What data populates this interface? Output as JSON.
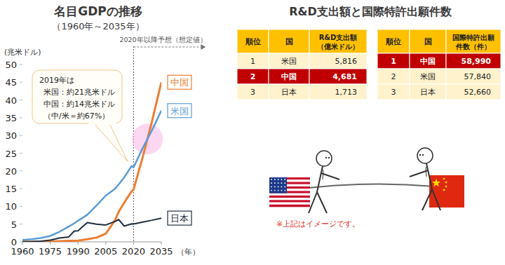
{
  "chart_data": {
    "type": "line",
    "title": "名目GDPの推移",
    "subtitle": "（1960年～2035年）",
    "y_label": "(兆米ドル)",
    "x_label": "（年）",
    "x": [
      1960,
      1965,
      1970,
      1975,
      1980,
      1985,
      1988,
      1990,
      1995,
      2000,
      2005,
      2010,
      2012,
      2015,
      2019,
      2020,
      2025,
      2030,
      2035
    ],
    "series": [
      {
        "name": "中国",
        "color": "#ed7d31",
        "values": [
          0.06,
          0.07,
          0.09,
          0.16,
          0.19,
          0.31,
          0.31,
          0.36,
          0.73,
          1.21,
          2.29,
          6.09,
          8.5,
          11.06,
          14.3,
          14.7,
          24,
          34,
          45
        ]
      },
      {
        "name": "米国",
        "color": "#5b9bd5",
        "values": [
          0.54,
          0.74,
          1.07,
          1.68,
          2.86,
          4.34,
          5.24,
          5.96,
          7.64,
          10.25,
          13.04,
          14.99,
          16.2,
          18.2,
          21.4,
          21.0,
          26.5,
          31.5,
          37
        ]
      },
      {
        "name": "日本",
        "color": "#1f2d3d",
        "values": [
          0.04,
          0.09,
          0.21,
          0.5,
          1.1,
          1.4,
          3.07,
          3.13,
          5.45,
          4.97,
          4.76,
          5.76,
          6.27,
          4.44,
          5.08,
          5.05,
          5.6,
          6.1,
          6.7
        ]
      }
    ],
    "xlim": [
      1960,
      2035
    ],
    "xticks": [
      1960,
      1975,
      1990,
      2005,
      2020,
      2035
    ],
    "ylim": [
      0,
      50
    ],
    "yticks": [
      0,
      5,
      10,
      15,
      20,
      25,
      30,
      35,
      40,
      45,
      50
    ],
    "grid": false,
    "annotations": [
      {
        "text": "2020年以降予想（想定値）",
        "x": 2020
      },
      {
        "lines": [
          "2019年は",
          "米国：約21兆米ドル",
          "中国：約14兆米ドル",
          "（中/米＝約67%）"
        ]
      }
    ]
  },
  "panel": {
    "title": "R&D支出額と国際特許出願件数",
    "tables": [
      {
        "columns": [
          "順位",
          "国",
          [
            "R&D支出額",
            "（億米ドル）"
          ]
        ],
        "rows": [
          [
            "1",
            "米国",
            "5,816"
          ],
          [
            "2",
            "中国",
            "4,681"
          ],
          [
            "3",
            "日本",
            "1,713"
          ]
        ],
        "highlight": 1
      },
      {
        "columns": [
          "順位",
          "国",
          [
            "国際特許出願",
            "件数（件）"
          ]
        ],
        "rows": [
          [
            "1",
            "中国",
            "58,990"
          ],
          [
            "2",
            "米国",
            "57,840"
          ],
          [
            "3",
            "日本",
            "52,660"
          ]
        ],
        "highlight": 0
      }
    ],
    "note": "※上記はイメージです。"
  }
}
